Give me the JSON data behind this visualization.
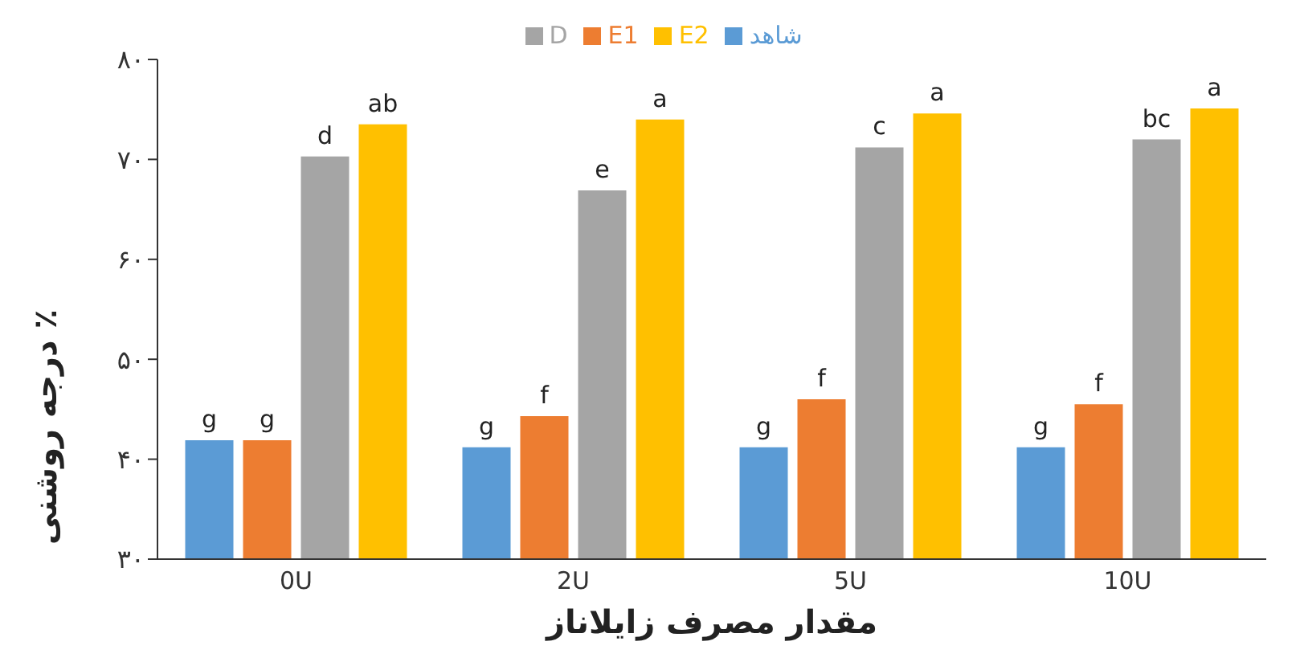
{
  "chart_data": {
    "type": "bar",
    "xlabel": "مقدار مصرف زایلاناز",
    "ylabel": "درجه روشنی ٪",
    "categories": [
      "0U",
      "2U",
      "5U",
      "10U"
    ],
    "series": [
      {
        "name": "شاهد",
        "color": "#5b9bd5",
        "values": [
          41.9,
          41.2,
          41.2,
          41.2
        ],
        "value_labels": [
          "g",
          "g",
          "g",
          "g"
        ]
      },
      {
        "name": "E1",
        "color": "#ed7d31",
        "values": [
          41.9,
          44.3,
          46.0,
          45.5
        ],
        "value_labels": [
          "g",
          "f",
          "f",
          "f"
        ]
      },
      {
        "name": "D",
        "color": "#a5a5a5",
        "values": [
          70.3,
          66.9,
          71.2,
          72.0
        ],
        "value_labels": [
          "d",
          "e",
          "c",
          "bc"
        ]
      },
      {
        "name": "E2",
        "color": "#ffc000",
        "values": [
          73.5,
          74.0,
          74.6,
          75.1
        ],
        "value_labels": [
          "ab",
          "a",
          "a",
          "a"
        ]
      }
    ],
    "ylim": [
      30,
      80
    ],
    "yticks": [
      {
        "value": 30,
        "label": "۳۰"
      },
      {
        "value": 40,
        "label": "۴۰"
      },
      {
        "value": 50,
        "label": "۵۰"
      },
      {
        "value": 60,
        "label": "۶۰"
      },
      {
        "value": 70,
        "label": "۷۰"
      },
      {
        "value": 80,
        "label": "۸۰"
      }
    ],
    "grid": false,
    "legend": "top"
  }
}
